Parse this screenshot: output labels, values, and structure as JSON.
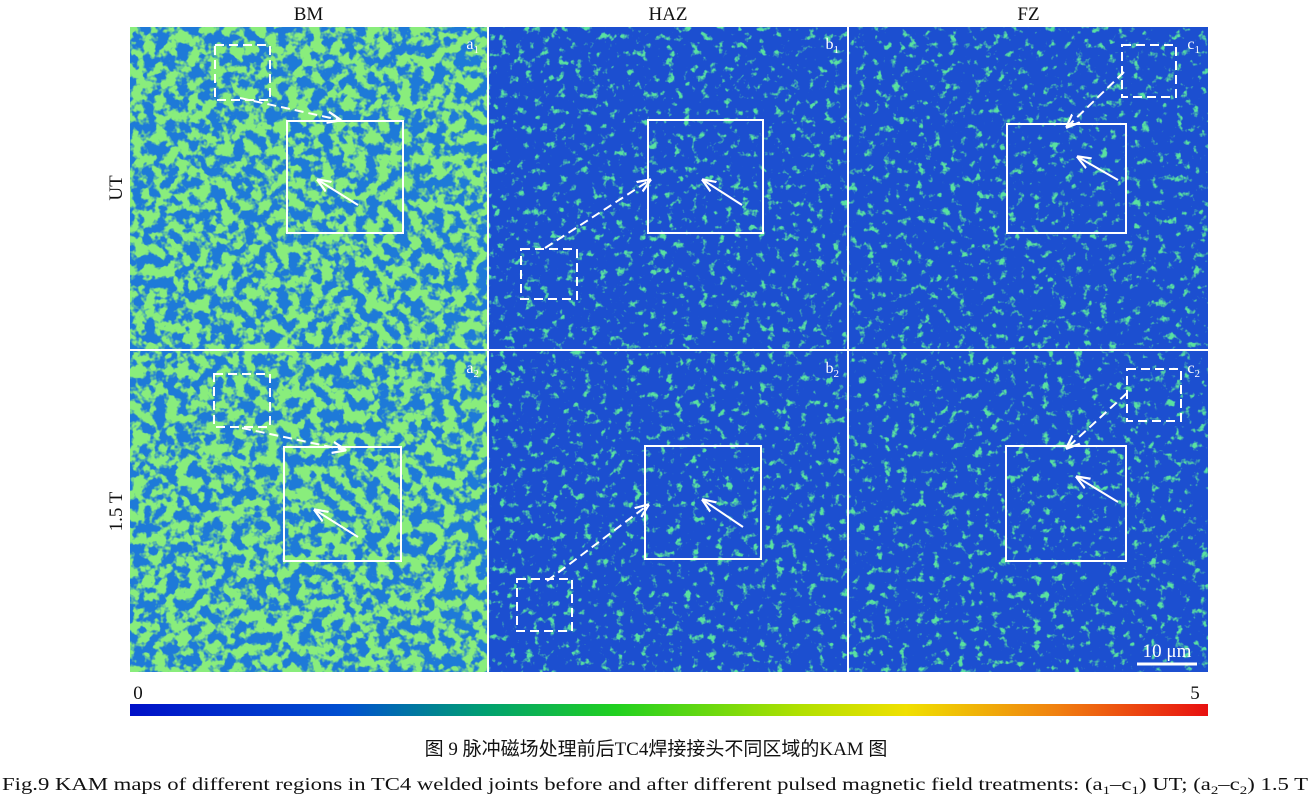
{
  "figure": {
    "column_headers": [
      "BM",
      "HAZ",
      "FZ"
    ],
    "row_labels": [
      "UT",
      "1.5 T"
    ],
    "panels": [
      [
        {
          "letter": "a",
          "sub": "1"
        },
        {
          "letter": "b",
          "sub": "1"
        },
        {
          "letter": "c",
          "sub": "1"
        }
      ],
      [
        {
          "letter": "a",
          "sub": "2"
        },
        {
          "letter": "b",
          "sub": "2"
        },
        {
          "letter": "c",
          "sub": "2"
        }
      ]
    ],
    "scale_bar": "10 μm",
    "colorbar": {
      "min": 0,
      "max": 5
    },
    "caption_cn": "图 9  脉冲磁场处理前后TC4焊接接头不同区域的KAM 图",
    "caption_en": [
      "Fig.9  KAM maps of different regions in TC4 welded joints before and after different pulsed magnetic field treatments: (a",
      "1",
      "–c",
      "1",
      ") UT; (a",
      "2",
      "–c",
      "2",
      ") 1.5 T"
    ]
  }
}
